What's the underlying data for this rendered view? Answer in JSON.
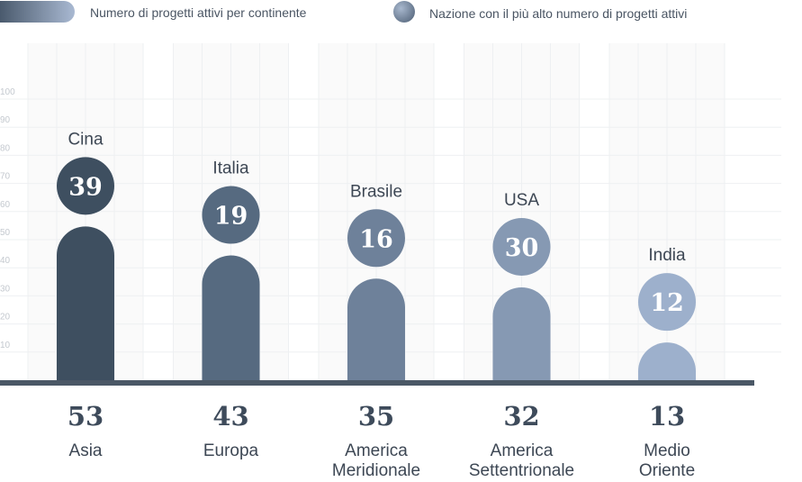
{
  "legend": {
    "continent_label": "Numero di progetti attivi per continente",
    "country_label": "Nazione con il più alto numero di progetti attivi"
  },
  "chart_data": {
    "type": "bar",
    "categories": [
      [
        "Asia"
      ],
      [
        "Europa"
      ],
      [
        "America",
        "Meridionale"
      ],
      [
        "America",
        "Settentrionale"
      ],
      [
        "Medio",
        "Oriente"
      ]
    ],
    "series": [
      {
        "name": "Numero di progetti attivi per continente",
        "values": [
          53,
          43,
          35,
          32,
          13
        ]
      },
      {
        "name": "Nazione con il più alto numero di progetti attivi",
        "values": [
          39,
          19,
          16,
          30,
          12
        ]
      }
    ],
    "countries": [
      "Cina",
      "Italia",
      "Brasile",
      "USA",
      "India"
    ],
    "colors": [
      "#3e4f60",
      "#566a80",
      "#6e819a",
      "#8699b3",
      "#9db0cc"
    ],
    "legend_colors": {
      "continent": "#8a9cb5",
      "country": "#7f93ad"
    },
    "yticks": [
      10,
      20,
      30,
      40,
      50,
      60,
      70,
      80,
      90,
      100
    ],
    "ylim": [
      0,
      100
    ],
    "grid": true,
    "legend_position": "top"
  }
}
